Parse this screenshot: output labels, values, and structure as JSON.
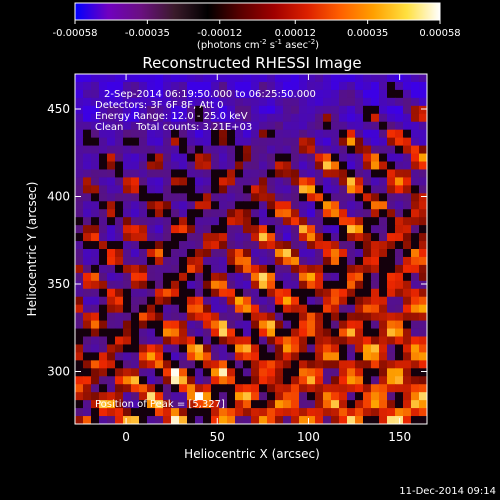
{
  "footer_timestamp": "11-Dec-2014 09:14",
  "chart_data": {
    "type": "heatmap",
    "title": "Reconstructed RHESSI Image",
    "xlabel": "Heliocentric X (arcsec)",
    "ylabel": "Heliocentric Y (arcsec)",
    "xlim": [
      -28,
      165
    ],
    "ylim": [
      270,
      470
    ],
    "x_ticks": [
      0,
      50,
      100,
      150
    ],
    "y_ticks": [
      300,
      350,
      400,
      450
    ],
    "colorbar": {
      "ticks": [
        "-0.00058",
        "-0.00035",
        "-0.00012",
        "0.00012",
        "0.00035",
        "0.00058"
      ],
      "min": -0.00058,
      "max": 0.00058,
      "unit_label": "(photons cm",
      "unit_sup1": "-2",
      "unit_mid": " s",
      "unit_sup2": "-1",
      "unit_end": " asec",
      "unit_sup3": "-2",
      "unit_close": ")",
      "colors": [
        "#0000ff",
        "#7000c0",
        "#6a1080",
        "#3a1a2a",
        "#000000",
        "#5a0000",
        "#a00000",
        "#dc2000",
        "#ff6000",
        "#ffa000",
        "#ffe040",
        "#ffffff"
      ]
    },
    "annotations": [
      "2-Sep-2014 06:19:50.000 to 06:25:50.000",
      "Detectors: 3F 6F 8F, Att 0",
      "Energy Range: 12.0 - 25.0 keV",
      "Clean    Total counts: 3.21E+03"
    ],
    "peak_label": "Position of Peak = [5,327]",
    "peak_position": [
      5,
      327
    ],
    "colors": {
      "negative_strong": "#0000ff",
      "negative_weak": "#6a1080",
      "zero": "#000000",
      "positive_mid": "#dc2000",
      "positive_high": "#ffe040",
      "positive_max": "#ffffff"
    }
  }
}
